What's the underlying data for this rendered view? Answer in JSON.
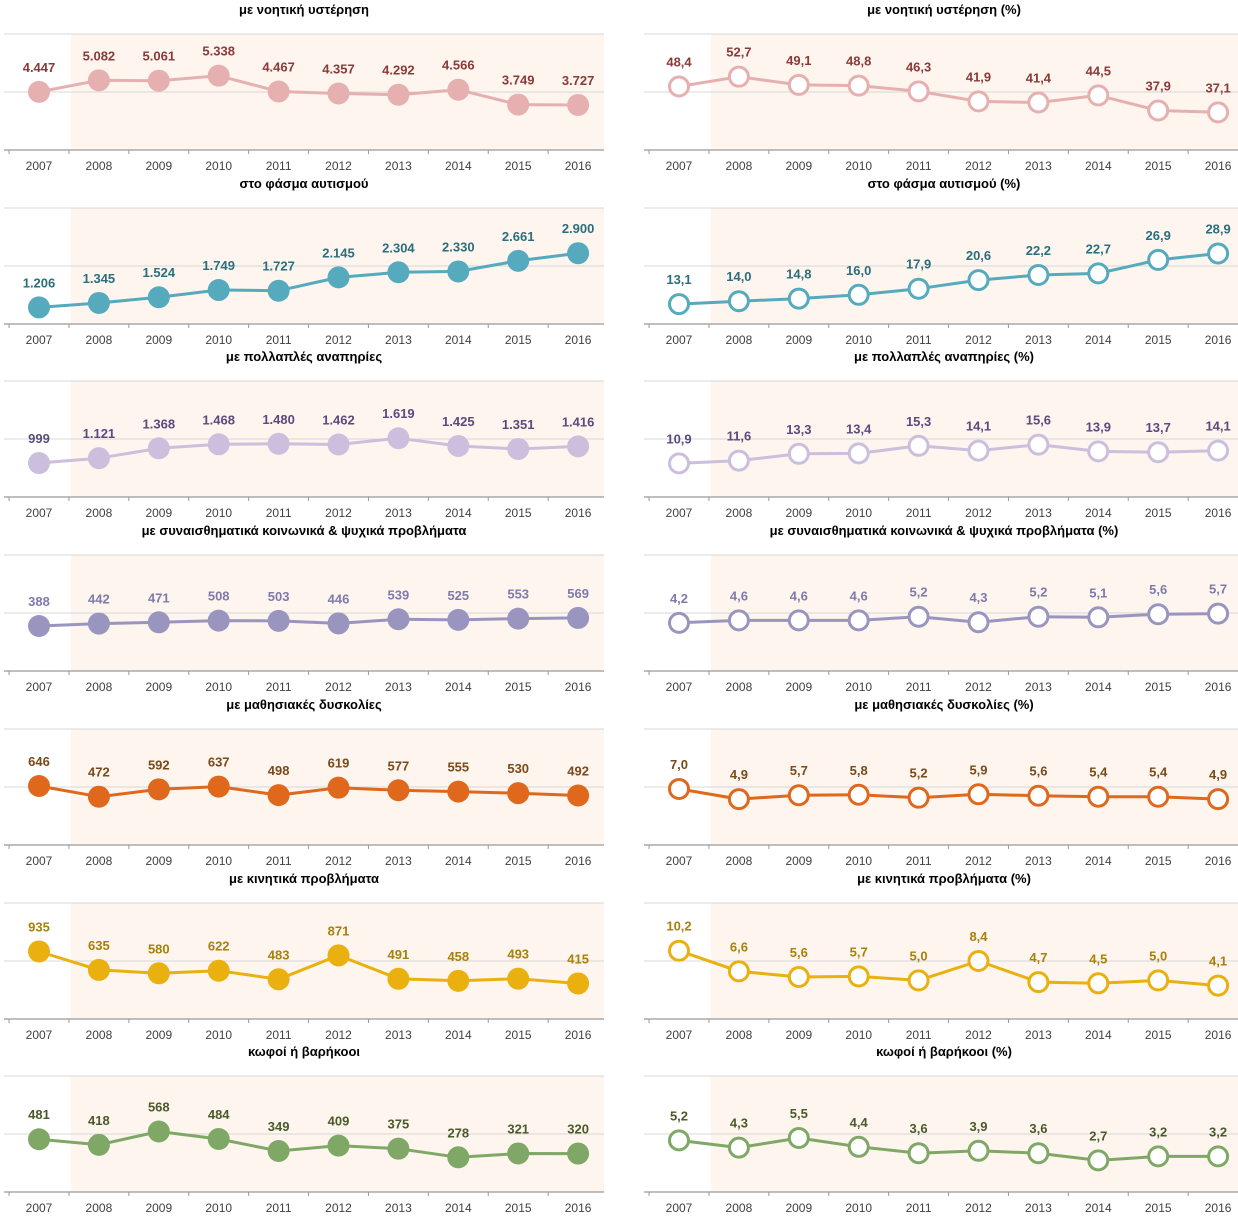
{
  "chart_data": [
    {
      "type": "line",
      "title": "με νοητική υστέρηση",
      "categories": [
        "2007",
        "2008",
        "2009",
        "2010",
        "2011",
        "2012",
        "2013",
        "2014",
        "2015",
        "2016"
      ],
      "values": [
        4447,
        5082,
        5061,
        5338,
        4467,
        4357,
        4292,
        4566,
        3749,
        3727
      ],
      "labels": [
        "4.447",
        "5.082",
        "5.061",
        "5.338",
        "4.467",
        "4.357",
        "4.292",
        "4.566",
        "3.749",
        "3.727"
      ],
      "marker": "filled",
      "color": "#e6b0b0",
      "label_color": "#8b3a3a",
      "ylim": [
        1800,
        6200
      ],
      "shaded_from": "2008"
    },
    {
      "type": "line",
      "title": "με νοητική υστέρηση (%)",
      "categories": [
        "2007",
        "2008",
        "2009",
        "2010",
        "2011",
        "2012",
        "2013",
        "2014",
        "2015",
        "2016"
      ],
      "values": [
        48.4,
        52.7,
        49.1,
        48.8,
        46.3,
        41.9,
        41.4,
        44.5,
        37.9,
        37.1
      ],
      "labels": [
        "48,4",
        "52,7",
        "49,1",
        "48,8",
        "46,3",
        "41,9",
        "41,4",
        "44,5",
        "37,9",
        "37,1"
      ],
      "marker": "hollow",
      "color": "#e6b0b0",
      "label_color": "#8b3a3a",
      "ylim": [
        25,
        60
      ],
      "shaded_from": "2008"
    },
    {
      "type": "line",
      "title": "στο φάσμα αυτισμού",
      "categories": [
        "2007",
        "2008",
        "2009",
        "2010",
        "2011",
        "2012",
        "2013",
        "2014",
        "2015",
        "2016"
      ],
      "values": [
        1206,
        1345,
        1524,
        1749,
        1727,
        2145,
        2304,
        2330,
        2661,
        2900
      ],
      "labels": [
        "1.206",
        "1.345",
        "1.524",
        "1.749",
        "1.727",
        "2.145",
        "2.304",
        "2.330",
        "2.661",
        "2.900"
      ],
      "marker": "filled",
      "color": "#55aabd",
      "label_color": "#2b6e7e",
      "ylim": [
        1000,
        3500
      ],
      "shaded_from": "2008"
    },
    {
      "type": "line",
      "title": "στο φάσμα αυτισμού (%)",
      "categories": [
        "2007",
        "2008",
        "2009",
        "2010",
        "2011",
        "2012",
        "2013",
        "2014",
        "2015",
        "2016"
      ],
      "values": [
        13.1,
        14.0,
        14.8,
        16.0,
        17.9,
        20.6,
        22.2,
        22.7,
        26.9,
        28.9
      ],
      "labels": [
        "13,1",
        "14,0",
        "14,8",
        "16,0",
        "17,9",
        "20,6",
        "22,2",
        "22,7",
        "26,9",
        "28,9"
      ],
      "marker": "hollow",
      "color": "#55aabd",
      "label_color": "#2b6e7e",
      "ylim": [
        10,
        35
      ],
      "shaded_from": "2008"
    },
    {
      "type": "line",
      "title": "με πολλαπλές αναπηρίες",
      "categories": [
        "2007",
        "2008",
        "2009",
        "2010",
        "2011",
        "2012",
        "2013",
        "2014",
        "2015",
        "2016"
      ],
      "values": [
        999,
        1121,
        1368,
        1468,
        1480,
        1462,
        1619,
        1425,
        1351,
        1416
      ],
      "labels": [
        "999",
        "1.121",
        "1.368",
        "1.468",
        "1.480",
        "1.462",
        "1.619",
        "1.425",
        "1.351",
        "1.416"
      ],
      "marker": "filled",
      "color": "#cbbfdd",
      "label_color": "#5b4a7e",
      "ylim": [
        400,
        2400
      ],
      "shaded_from": "2008"
    },
    {
      "type": "line",
      "title": "με πολλαπλές αναπηρίες (%)",
      "categories": [
        "2007",
        "2008",
        "2009",
        "2010",
        "2011",
        "2012",
        "2013",
        "2014",
        "2015",
        "2016"
      ],
      "values": [
        10.9,
        11.6,
        13.3,
        13.4,
        15.3,
        14.1,
        15.6,
        13.9,
        13.7,
        14.1
      ],
      "labels": [
        "10,9",
        "11,6",
        "13,3",
        "13,4",
        "15,3",
        "14,1",
        "15,6",
        "13,9",
        "13,7",
        "14,1"
      ],
      "marker": "hollow",
      "color": "#cbbfdd",
      "label_color": "#5b4a7e",
      "ylim": [
        5,
        25
      ],
      "shaded_from": "2008"
    },
    {
      "type": "line",
      "title": "με συναισθηματικά κοινωνικά & ψυχικά προβλήματα",
      "categories": [
        "2007",
        "2008",
        "2009",
        "2010",
        "2011",
        "2012",
        "2013",
        "2014",
        "2015",
        "2016"
      ],
      "values": [
        388,
        442,
        471,
        508,
        503,
        446,
        539,
        525,
        553,
        569
      ],
      "labels": [
        "388",
        "442",
        "471",
        "508",
        "503",
        "446",
        "539",
        "525",
        "553",
        "569"
      ],
      "marker": "filled",
      "color": "#9995bf",
      "label_color": "#7f7aac",
      "ylim": [
        -400,
        1400
      ],
      "shaded_from": "2008"
    },
    {
      "type": "line",
      "title": "με συναισθηματικά κοινωνικά & ψυχικά προβλήματα (%)",
      "categories": [
        "2007",
        "2008",
        "2009",
        "2010",
        "2011",
        "2012",
        "2013",
        "2014",
        "2015",
        "2016"
      ],
      "values": [
        4.2,
        4.6,
        4.6,
        4.6,
        5.2,
        4.3,
        5.2,
        5.1,
        5.6,
        5.7
      ],
      "labels": [
        "4,2",
        "4,6",
        "4,6",
        "4,6",
        "5,2",
        "4,3",
        "5,2",
        "5,1",
        "5,6",
        "5,7"
      ],
      "marker": "hollow",
      "color": "#9995bf",
      "label_color": "#7f7aac",
      "ylim": [
        -2,
        11
      ],
      "shaded_from": "2008"
    },
    {
      "type": "line",
      "title": "με μαθησιακές δυσκολίες",
      "categories": [
        "2007",
        "2008",
        "2009",
        "2010",
        "2011",
        "2012",
        "2013",
        "2014",
        "2015",
        "2016"
      ],
      "values": [
        646,
        472,
        592,
        637,
        498,
        619,
        577,
        555,
        530,
        492
      ],
      "labels": [
        "646",
        "472",
        "592",
        "637",
        "498",
        "619",
        "577",
        "555",
        "530",
        "492"
      ],
      "marker": "filled",
      "color": "#e0681d",
      "label_color": "#7a4a1a",
      "ylim": [
        -150,
        1150
      ],
      "shaded_from": "2008"
    },
    {
      "type": "line",
      "title": "με μαθησιακές δυσκολίες (%)",
      "categories": [
        "2007",
        "2008",
        "2009",
        "2010",
        "2011",
        "2012",
        "2013",
        "2014",
        "2015",
        "2016"
      ],
      "values": [
        7.0,
        4.9,
        5.7,
        5.8,
        5.2,
        5.9,
        5.6,
        5.4,
        5.4,
        4.9
      ],
      "labels": [
        "7,0",
        "4,9",
        "5,7",
        "5,8",
        "5,2",
        "5,9",
        "5,6",
        "5,4",
        "5,4",
        "4,9"
      ],
      "marker": "hollow",
      "color": "#e0681d",
      "label_color": "#7a4a1a",
      "ylim": [
        -2.5,
        14
      ],
      "shaded_from": "2008"
    },
    {
      "type": "line",
      "title": "με κινητικά προβλήματα",
      "categories": [
        "2007",
        "2008",
        "2009",
        "2010",
        "2011",
        "2012",
        "2013",
        "2014",
        "2015",
        "2016"
      ],
      "values": [
        935,
        635,
        580,
        622,
        483,
        871,
        491,
        458,
        493,
        415
      ],
      "labels": [
        "935",
        "635",
        "580",
        "622",
        "483",
        "871",
        "491",
        "458",
        "493",
        "415"
      ],
      "marker": "filled",
      "color": "#eab010",
      "label_color": "#a8800a",
      "ylim": [
        0,
        1300
      ],
      "shaded_from": "2008"
    },
    {
      "type": "line",
      "title": "με κινητικά προβλήματα (%)",
      "categories": [
        "2007",
        "2008",
        "2009",
        "2010",
        "2011",
        "2012",
        "2013",
        "2014",
        "2015",
        "2016"
      ],
      "values": [
        10.2,
        6.6,
        5.6,
        5.7,
        5.0,
        8.4,
        4.7,
        4.5,
        5.0,
        4.1
      ],
      "labels": [
        "10,2",
        "6,6",
        "5,6",
        "5,7",
        "5,0",
        "8,4",
        "4,7",
        "4,5",
        "5,0",
        "4,1"
      ],
      "marker": "hollow",
      "color": "#eab010",
      "label_color": "#a8800a",
      "ylim": [
        0,
        14
      ],
      "shaded_from": "2008"
    },
    {
      "type": "line",
      "title": "κωφοί ή βαρήκοοι",
      "categories": [
        "2007",
        "2008",
        "2009",
        "2010",
        "2011",
        "2012",
        "2013",
        "2014",
        "2015",
        "2016"
      ],
      "values": [
        481,
        418,
        568,
        484,
        349,
        409,
        375,
        278,
        321,
        320
      ],
      "labels": [
        "481",
        "418",
        "568",
        "484",
        "349",
        "409",
        "375",
        "278",
        "321",
        "320"
      ],
      "marker": "filled",
      "color": "#7fa866",
      "label_color": "#4a5a2a",
      "ylim": [
        0,
        900
      ],
      "shaded_from": "2008"
    },
    {
      "type": "line",
      "title": "κωφοί ή βαρήκοοι (%)",
      "categories": [
        "2007",
        "2008",
        "2009",
        "2010",
        "2011",
        "2012",
        "2013",
        "2014",
        "2015",
        "2016"
      ],
      "values": [
        5.2,
        4.3,
        5.5,
        4.4,
        3.6,
        3.9,
        3.6,
        2.7,
        3.2,
        3.2
      ],
      "labels": [
        "5,2",
        "4,3",
        "5,5",
        "4,4",
        "3,6",
        "3,9",
        "3,6",
        "2,7",
        "3,2",
        "3,2"
      ],
      "marker": "hollow",
      "color": "#7fa866",
      "label_color": "#4a5a2a",
      "ylim": [
        0,
        10
      ],
      "shaded_from": "2008"
    }
  ]
}
